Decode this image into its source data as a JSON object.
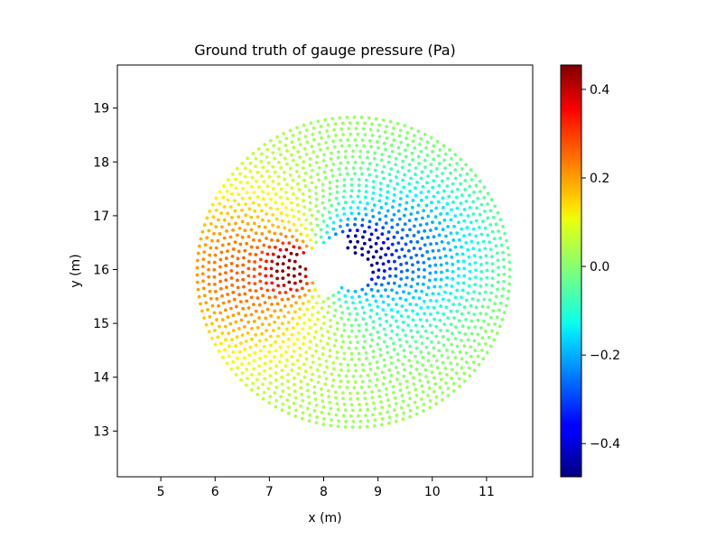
{
  "chart_data": {
    "type": "scatter",
    "title": "Ground truth of gauge pressure (Pa)",
    "xlabel": "x (m)",
    "ylabel": "y (m)",
    "xlim": [
      4.2,
      11.85
    ],
    "ylim": [
      12.15,
      19.8
    ],
    "xticks": [
      5,
      6,
      7,
      8,
      9,
      10,
      11
    ],
    "yticks": [
      13,
      14,
      15,
      16,
      17,
      18,
      19
    ],
    "grid": false,
    "colormap": "jet",
    "colorbar": {
      "range": [
        -0.475,
        0.455
      ],
      "ticks": [
        0.4,
        0.2,
        0.0,
        -0.2,
        -0.4
      ],
      "tick_labels": [
        "0.4",
        "0.2",
        "0.0",
        "−0.2",
        "−0.4"
      ]
    },
    "field": {
      "description_source": "point cloud on a disc around a square obstacle",
      "disc_center": [
        8.55,
        15.95
      ],
      "disc_radius": 2.95,
      "obstacle_center": [
        8.15,
        16.05
      ],
      "obstacle_size": 0.75,
      "obstacle_rotation_deg": 30,
      "min_value": -0.47,
      "max_value": 0.45
    }
  }
}
